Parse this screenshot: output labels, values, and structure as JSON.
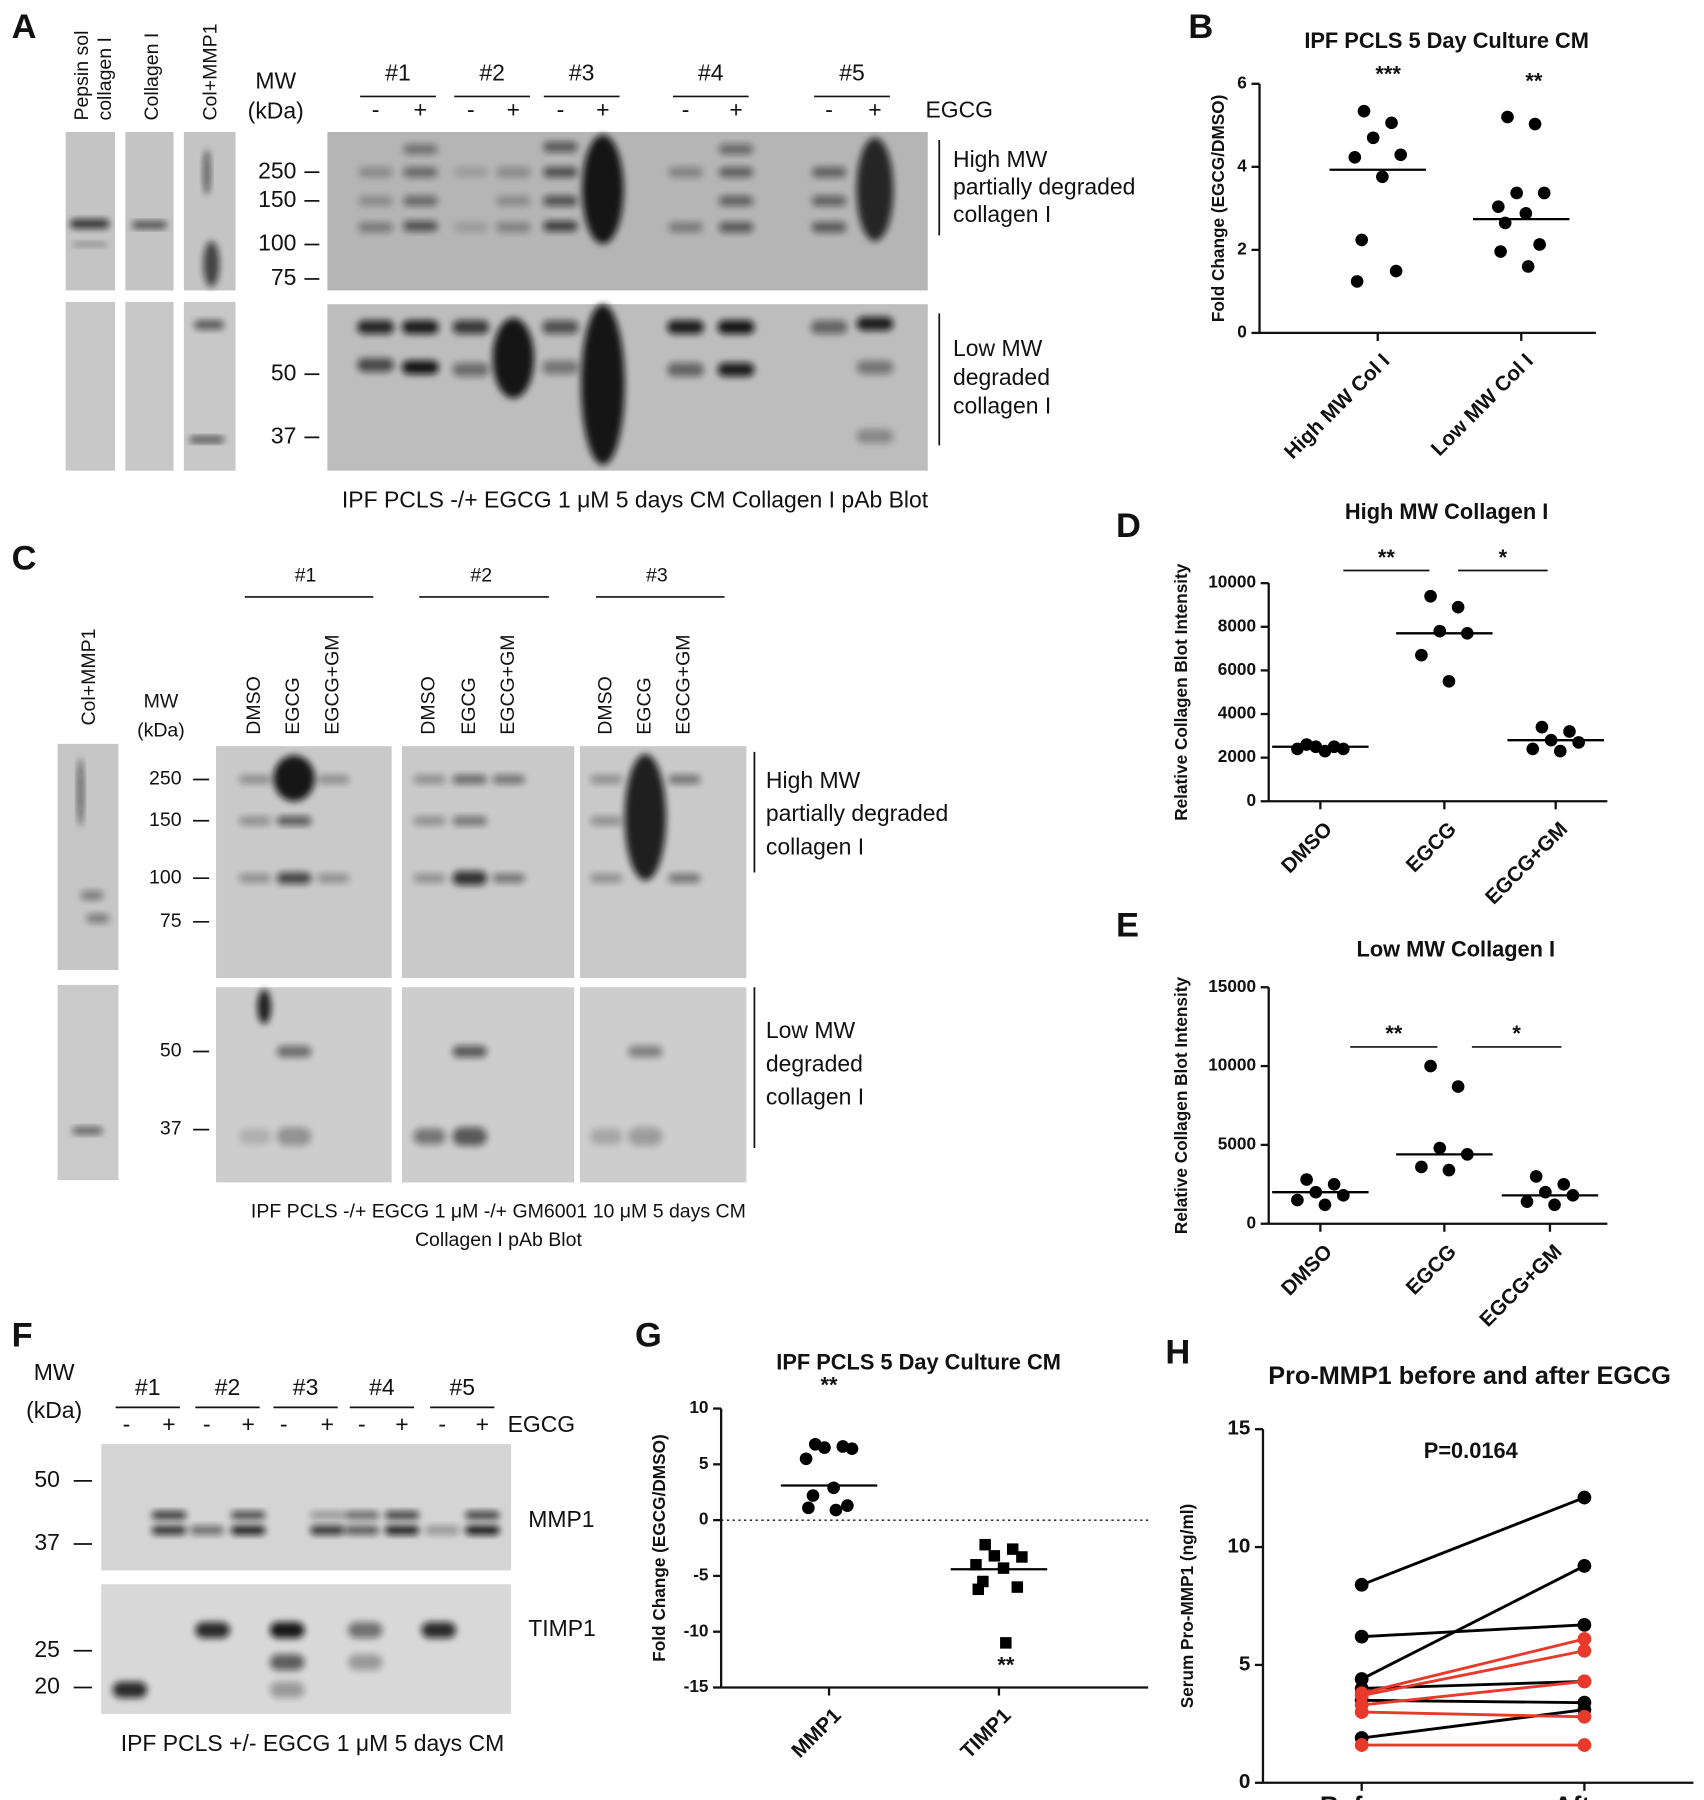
{
  "figure": {
    "panel_letters": [
      "A",
      "B",
      "C",
      "D",
      "E",
      "F",
      "G",
      "H"
    ],
    "blot_a": {
      "lane_labels": [
        [
          "Pepsin sol",
          "collagen I"
        ],
        [
          "Collagen I"
        ],
        [
          "Col+MMP1"
        ]
      ],
      "mw_title": [
        "MW",
        "(kDa)"
      ],
      "samples": [
        "#1",
        "#2",
        "#3",
        "#4",
        "#5"
      ],
      "signs": [
        "-",
        "+"
      ],
      "treatment": "EGCG",
      "mw_markers": [
        250,
        150,
        100,
        75,
        50,
        37
      ],
      "high_label": [
        "High MW",
        "partially degraded",
        "collagen I"
      ],
      "low_label": [
        "Low MW",
        "degraded",
        "collagen I"
      ],
      "caption": "IPF PCLS -/+ EGCG 1 μM 5 days CM Collagen I pAb Blot"
    },
    "blot_c": {
      "lane_label": "Col+MMP1",
      "mw_title": [
        "MW",
        "(kDa)"
      ],
      "samples": [
        "#1",
        "#2",
        "#3"
      ],
      "conditions": [
        "DMSO",
        "EGCG",
        "EGCG+GM"
      ],
      "mw_markers": [
        250,
        150,
        100,
        75,
        50,
        37
      ],
      "high_label": [
        "High MW",
        "partially degraded",
        "collagen I"
      ],
      "low_label": [
        "Low MW",
        "degraded",
        "collagen I"
      ],
      "caption": [
        "IPF PCLS -/+ EGCG 1 μM -/+ GM6001 10 μM 5 days CM",
        "Collagen I pAb Blot"
      ]
    },
    "blot_f": {
      "mw_title": [
        "MW",
        "(kDa)"
      ],
      "samples": [
        "#1",
        "#2",
        "#3",
        "#4",
        "#5"
      ],
      "signs": [
        "-",
        "+"
      ],
      "treatment": "EGCG",
      "mw_markers": [
        50,
        37,
        25,
        20
      ],
      "targets": [
        "MMP1",
        "TIMP1"
      ],
      "caption": "IPF PCLS +/- EGCG 1 μM 5 days CM"
    }
  },
  "chart_data": [
    {
      "type": "dot_plot",
      "title": "IPF PCLS 5 Day Culture CM",
      "y_label": "Fold Change (EGCG/DMSO)",
      "categories": [
        "High MW Col I",
        "Low MW Col I"
      ],
      "ylim": [
        0,
        6
      ],
      "yticks": [
        0,
        2,
        4,
        6
      ],
      "color": "#000000",
      "markers": [
        "circle",
        "circle"
      ],
      "points": [
        [
          5.34,
          5.06,
          4.7,
          4.29,
          4.23,
          3.76,
          2.24,
          1.49,
          1.24
        ],
        [
          5.2,
          5.03,
          3.37,
          3.37,
          3.04,
          2.88,
          2.65,
          2.13,
          1.96,
          1.6
        ]
      ],
      "center_lines": [
        3.93,
        2.74
      ],
      "annotations": [
        "***",
        "**"
      ]
    },
    {
      "type": "dot_plot",
      "title": "High MW Collagen I",
      "y_label": "Relative Collagen Blot Intensity",
      "categories": [
        "DMSO",
        "EGCG",
        "EGCG+GM"
      ],
      "ylim": [
        0,
        10000
      ],
      "yticks": [
        0,
        2000,
        4000,
        6000,
        8000,
        10000
      ],
      "color": "#000000",
      "markers": [
        "circle",
        "circle",
        "circle"
      ],
      "points": [
        [
          2600,
          2500,
          2500,
          2400,
          2400,
          2300
        ],
        [
          9400,
          8900,
          7800,
          7700,
          6700,
          5500
        ],
        [
          3400,
          3200,
          2800,
          2700,
          2400,
          2300
        ]
      ],
      "center_lines": [
        2500,
        7700,
        2800
      ],
      "brackets": [
        "**",
        "*"
      ]
    },
    {
      "type": "dot_plot",
      "title": "Low MW Collagen I",
      "y_label": "Relative Collagen Blot Intensity",
      "categories": [
        "DMSO",
        "EGCG",
        "EGCG+GM"
      ],
      "ylim": [
        0,
        15000
      ],
      "yticks": [
        0,
        5000,
        10000,
        15000
      ],
      "color": "#000000",
      "markers": [
        "circle",
        "circle",
        "circle"
      ],
      "points": [
        [
          2800,
          2500,
          2000,
          1800,
          1500,
          1200
        ],
        [
          10000,
          8700,
          4800,
          4400,
          3600,
          3400
        ],
        [
          3000,
          2500,
          2000,
          1800,
          1400,
          1200
        ]
      ],
      "center_lines": [
        2000,
        4400,
        1800
      ],
      "brackets": [
        "**",
        "*"
      ]
    },
    {
      "type": "dot_plot",
      "title": "IPF PCLS 5 Day Culture CM",
      "y_label": "Fold Change (EGCG/DMSO)",
      "categories": [
        "MMP1",
        "TIMP1"
      ],
      "ylim": [
        -15,
        10
      ],
      "yticks": [
        -15,
        -10,
        -5,
        0,
        5,
        10
      ],
      "color": "#000000",
      "markers": [
        "circle",
        "square"
      ],
      "points": [
        [
          6.8,
          6.6,
          6.5,
          6.4,
          5.5,
          2.9,
          2.2,
          1.3,
          1.1,
          0.9
        ],
        [
          -2.2,
          -2.6,
          -3.2,
          -3.3,
          -4.0,
          -4.3,
          -5.5,
          -6.0,
          -6.2,
          -11.0
        ]
      ],
      "center_lines": [
        3.1,
        -4.4
      ],
      "annotations": [
        "**",
        "**"
      ]
    },
    {
      "type": "paired_line",
      "title": "Pro-MMP1 before and after EGCG",
      "y_label": "Serum Pro-MMP1 (ng/ml)",
      "categories": [
        "Before",
        "After"
      ],
      "ylim": [
        0,
        15
      ],
      "yticks": [
        0,
        5,
        10,
        15
      ],
      "annotation": "P=0.0164",
      "pairs": [
        {
          "color": "#000000",
          "values": [
            8.4,
            12.1
          ]
        },
        {
          "color": "#000000",
          "values": [
            6.2,
            6.7
          ]
        },
        {
          "color": "#000000",
          "values": [
            4.4,
            9.2
          ]
        },
        {
          "color": "#000000",
          "values": [
            4.0,
            4.3
          ]
        },
        {
          "color": "#000000",
          "values": [
            3.5,
            3.4
          ]
        },
        {
          "color": "#000000",
          "values": [
            1.9,
            3.1
          ]
        },
        {
          "color": "#e8392b",
          "values": [
            3.8,
            6.1
          ]
        },
        {
          "color": "#e8392b",
          "values": [
            3.7,
            5.6
          ]
        },
        {
          "color": "#e8392b",
          "values": [
            3.3,
            4.3
          ]
        },
        {
          "color": "#e8392b",
          "values": [
            3.0,
            2.8
          ]
        },
        {
          "color": "#e8392b",
          "values": [
            1.6,
            1.6
          ]
        }
      ]
    }
  ]
}
